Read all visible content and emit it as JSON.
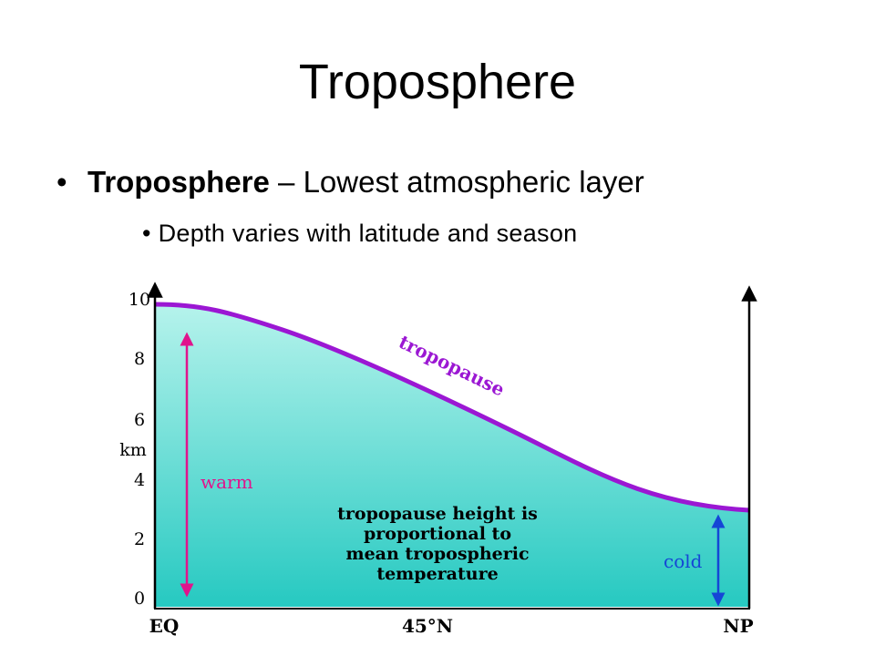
{
  "slide": {
    "title": "Troposphere",
    "bullet1": {
      "marker": "•",
      "term": "Troposphere",
      "rest": " – Lowest atmospheric layer"
    },
    "bullet2": {
      "marker": "•",
      "text": "Depth varies with latitude and season"
    }
  },
  "diagram": {
    "y_axis_unit": "km",
    "y_ticks": [
      "0",
      "2",
      "4",
      "6",
      "8",
      "10"
    ],
    "x_ticks": [
      "EQ",
      "45°N",
      "NP"
    ],
    "curve_label": "tropopause",
    "warm_label": "warm",
    "cold_label": "cold",
    "note_lines": [
      "tropopause height is",
      "proportional to",
      "mean tropospheric",
      "temperature"
    ],
    "colors": {
      "fill_top": "#b6f3ec",
      "fill_bottom": "#26c9c1",
      "curve": "#9b17d3",
      "warm": "#e0148c",
      "cold": "#1546d6",
      "axis": "#000000"
    }
  }
}
